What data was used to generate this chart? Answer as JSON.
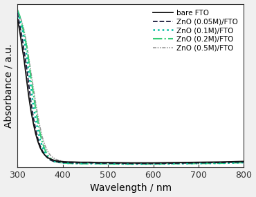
{
  "title": "",
  "xlabel": "Wavelength / nm",
  "ylabel": "Absorbance / a.u.",
  "xlim": [
    300,
    800
  ],
  "ylim": [
    0.0,
    0.55
  ],
  "background_color": "#f0f0f0",
  "plot_bg_color": "#ffffff",
  "series": [
    {
      "label": "bare FTO",
      "color": "#111111",
      "linestyle": "solid",
      "linewidth": 1.3,
      "x": [
        300,
        305,
        310,
        315,
        320,
        325,
        330,
        335,
        340,
        345,
        350,
        355,
        360,
        365,
        370,
        375,
        380,
        385,
        390,
        400,
        410,
        420,
        440,
        460,
        480,
        500,
        550,
        600,
        650,
        700,
        750,
        800
      ],
      "y": [
        0.5,
        0.46,
        0.41,
        0.36,
        0.3,
        0.24,
        0.19,
        0.15,
        0.115,
        0.088,
        0.067,
        0.052,
        0.042,
        0.035,
        0.03,
        0.027,
        0.024,
        0.022,
        0.021,
        0.019,
        0.018,
        0.018,
        0.017,
        0.017,
        0.016,
        0.016,
        0.015,
        0.015,
        0.016,
        0.017,
        0.018,
        0.02
      ]
    },
    {
      "label": "ZnO (0.05M)/FTO",
      "color": "#1a1a3a",
      "linestyle": "dashed",
      "linewidth": 1.3,
      "x": [
        300,
        305,
        310,
        315,
        320,
        325,
        330,
        335,
        340,
        345,
        350,
        355,
        360,
        365,
        370,
        375,
        380,
        385,
        390,
        395,
        400,
        410,
        420,
        440,
        460,
        480,
        500,
        550,
        600,
        650,
        700,
        750,
        800
      ],
      "y": [
        0.52,
        0.48,
        0.44,
        0.39,
        0.34,
        0.28,
        0.22,
        0.17,
        0.13,
        0.098,
        0.073,
        0.056,
        0.043,
        0.034,
        0.027,
        0.023,
        0.02,
        0.019,
        0.018,
        0.017,
        0.016,
        0.016,
        0.015,
        0.015,
        0.015,
        0.014,
        0.014,
        0.013,
        0.013,
        0.014,
        0.015,
        0.016,
        0.018
      ]
    },
    {
      "label": "ZnO (0.1M)/FTO",
      "color": "#00bba0",
      "linestyle": "dotted",
      "linewidth": 1.8,
      "x": [
        300,
        305,
        310,
        315,
        320,
        325,
        330,
        335,
        340,
        345,
        350,
        355,
        360,
        365,
        370,
        375,
        380,
        385,
        390,
        395,
        400,
        410,
        420,
        440,
        460,
        480,
        500,
        550,
        600,
        650,
        700,
        750,
        800
      ],
      "y": [
        0.52,
        0.5,
        0.47,
        0.43,
        0.38,
        0.32,
        0.27,
        0.21,
        0.165,
        0.126,
        0.094,
        0.07,
        0.051,
        0.038,
        0.029,
        0.024,
        0.02,
        0.018,
        0.017,
        0.016,
        0.015,
        0.014,
        0.014,
        0.013,
        0.013,
        0.012,
        0.012,
        0.011,
        0.011,
        0.012,
        0.013,
        0.014,
        0.016
      ]
    },
    {
      "label": "ZnO (0.2M)/FTO",
      "color": "#33cc77",
      "linestyle": "dashdot",
      "linewidth": 1.5,
      "x": [
        300,
        305,
        310,
        315,
        320,
        325,
        330,
        335,
        340,
        345,
        350,
        355,
        360,
        365,
        370,
        375,
        380,
        385,
        390,
        395,
        400,
        410,
        420,
        440,
        460,
        480,
        500,
        550,
        600,
        650,
        700,
        750,
        800
      ],
      "y": [
        0.53,
        0.51,
        0.48,
        0.45,
        0.41,
        0.36,
        0.3,
        0.25,
        0.2,
        0.155,
        0.115,
        0.085,
        0.062,
        0.046,
        0.035,
        0.027,
        0.022,
        0.019,
        0.017,
        0.016,
        0.015,
        0.014,
        0.013,
        0.012,
        0.012,
        0.012,
        0.011,
        0.011,
        0.011,
        0.012,
        0.013,
        0.014,
        0.016
      ]
    },
    {
      "label": "ZnO (0.5M)/FTO",
      "color": "#999999",
      "linestyle": "dashdotdot",
      "linewidth": 1.2,
      "x": [
        300,
        305,
        310,
        315,
        320,
        325,
        330,
        335,
        340,
        345,
        350,
        355,
        360,
        365,
        370,
        375,
        380,
        385,
        390,
        395,
        400,
        410,
        420,
        440,
        460,
        480,
        500,
        550,
        600,
        650,
        700,
        750,
        800
      ],
      "y": [
        0.53,
        0.51,
        0.49,
        0.46,
        0.42,
        0.37,
        0.32,
        0.27,
        0.22,
        0.175,
        0.135,
        0.102,
        0.077,
        0.059,
        0.046,
        0.037,
        0.031,
        0.027,
        0.024,
        0.022,
        0.02,
        0.018,
        0.017,
        0.016,
        0.016,
        0.015,
        0.015,
        0.014,
        0.014,
        0.015,
        0.016,
        0.017,
        0.019
      ]
    }
  ],
  "legend_loc": "upper right",
  "tick_fontsize": 9,
  "label_fontsize": 10,
  "legend_fontsize": 7.5
}
